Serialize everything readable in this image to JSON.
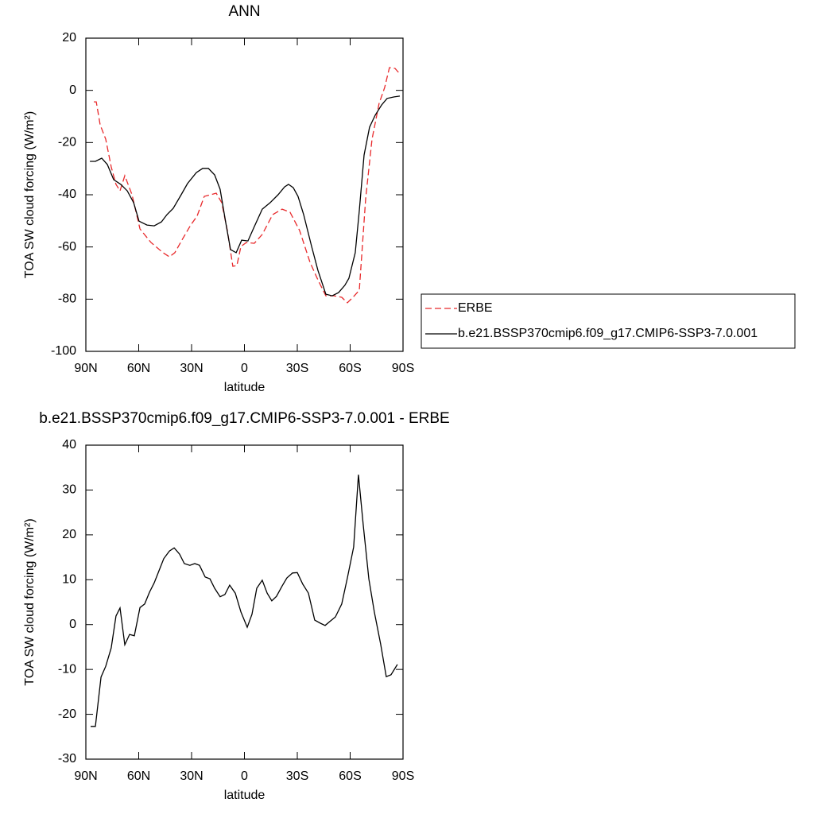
{
  "chart_data": [
    {
      "type": "line",
      "title": "ANN",
      "xlabel": "latitude",
      "ylabel": "TOA SW cloud forcing (W/m²)",
      "xlim": [
        90,
        -90
      ],
      "ylim": [
        20,
        -100
      ],
      "xticks": [
        {
          "value": 90,
          "label": "90N"
        },
        {
          "value": 60,
          "label": "60N"
        },
        {
          "value": 30,
          "label": "30N"
        },
        0,
        {
          "value": -30,
          "label": "30S"
        },
        {
          "value": -60,
          "label": "60S"
        },
        {
          "value": -90,
          "label": "90S"
        }
      ],
      "yticks": [
        20,
        0,
        -20,
        -40,
        -60,
        -80,
        -100
      ],
      "legend": "right",
      "series": [
        {
          "name": "ERBE",
          "color": "#e8292b",
          "linestyle": "dashed",
          "x": [
            85.5,
            84.1,
            81.9,
            78.7,
            75.6,
            72.9,
            70.6,
            67.9,
            63.8,
            59.3,
            53,
            46.2,
            42.6,
            39.5,
            35,
            30.5,
            26.9,
            22.8,
            19.2,
            16,
            12.9,
            9.7,
            6.6,
            4.3,
            2,
            -1.1,
            -5.6,
            -10.1,
            -16,
            -21.4,
            -25.9,
            -31.3,
            -37.2,
            -41.7,
            -46.2,
            -50.7,
            -55.2,
            -58.4,
            -61.6,
            -65.2,
            -68.8,
            -72.4,
            -76.4,
            -79.6,
            -82.3,
            -85.5,
            -88.2
          ],
          "values": [
            -4.4,
            -4.4,
            -13.2,
            -18.7,
            -29.3,
            -36,
            -38.5,
            -32.7,
            -40,
            -53.1,
            -58.3,
            -62.2,
            -63.8,
            -62.2,
            -56.8,
            -51.6,
            -48.2,
            -40.6,
            -40,
            -39.4,
            -43,
            -53.7,
            -67.4,
            -67.1,
            -59.8,
            -58.3,
            -58.6,
            -55.2,
            -47.6,
            -45.5,
            -46.7,
            -53.7,
            -65.9,
            -72.6,
            -78.7,
            -78.7,
            -79.3,
            -81.4,
            -79.3,
            -76.6,
            -41.5,
            -18.7,
            -5,
            1.1,
            8.7,
            8.4,
            6.3
          ]
        },
        {
          "name": "b.e21.BSSP370cmip6.f09_g17.CMIP6-SSP3-7.0.001",
          "color": "#000000",
          "linestyle": "solid",
          "x": [
            87.7,
            84.6,
            81,
            77.8,
            74.2,
            70.2,
            66.5,
            62.9,
            59.8,
            55.3,
            51.2,
            47.1,
            44,
            40.4,
            35.9,
            32.3,
            27.3,
            23.7,
            20.5,
            16.9,
            13.8,
            10.6,
            7.9,
            4.7,
            1.6,
            -2,
            -5.6,
            -10.1,
            -14.6,
            -19.1,
            -22.8,
            -25,
            -27.7,
            -30.4,
            -33.6,
            -38.1,
            -41.7,
            -46.2,
            -49.8,
            -53.4,
            -57,
            -59.3,
            -62.9,
            -65.2,
            -67.9,
            -71,
            -74.2,
            -77.8,
            -81,
            -85,
            -88.2
          ],
          "values": [
            -27.2,
            -27.2,
            -26,
            -28.4,
            -34.2,
            -36,
            -38.5,
            -43,
            -50.1,
            -51.6,
            -51.9,
            -50.4,
            -47.6,
            -45.2,
            -40,
            -35.7,
            -31.5,
            -29.9,
            -29.9,
            -32.4,
            -37.9,
            -50.7,
            -61,
            -62.2,
            -57.4,
            -57.7,
            -52.2,
            -45.5,
            -43,
            -40,
            -37,
            -36,
            -37.3,
            -40.6,
            -47.6,
            -59.8,
            -68.9,
            -78.1,
            -78.7,
            -77.5,
            -74.7,
            -72,
            -62.2,
            -46.1,
            -24.8,
            -14.1,
            -9.5,
            -5.6,
            -3.1,
            -2.5,
            -2.2
          ]
        }
      ]
    },
    {
      "type": "line",
      "title": "b.e21.BSSP370cmip6.f09_g17.CMIP6-SSP3-7.0.001 - ERBE",
      "xlabel": "latitude",
      "ylabel": "TOA SW cloud forcing (W/m²)",
      "xlim": [
        90,
        -90
      ],
      "ylim": [
        40,
        -30
      ],
      "xticks": [
        {
          "value": 90,
          "label": "90N"
        },
        {
          "value": 60,
          "label": "60N"
        },
        {
          "value": 30,
          "label": "30N"
        },
        0,
        {
          "value": -30,
          "label": "30S"
        },
        {
          "value": -60,
          "label": "60S"
        },
        {
          "value": -90,
          "label": "90S"
        }
      ],
      "yticks": [
        40,
        30,
        20,
        10,
        0,
        -10,
        -20,
        -30
      ],
      "series": [
        {
          "color": "#000000",
          "linestyle": "solid",
          "x": [
            87.3,
            84.6,
            81.4,
            78.7,
            75.6,
            72.9,
            70.6,
            67.9,
            65.2,
            62.5,
            59.3,
            56.6,
            53.9,
            51.2,
            48.5,
            45.8,
            42.6,
            39.9,
            36.8,
            34.1,
            31,
            28.2,
            25.5,
            22.3,
            19.6,
            16.9,
            13.8,
            11.1,
            8.4,
            5.2,
            2,
            -1.6,
            -4.3,
            -7,
            -10.1,
            -12.9,
            -15.5,
            -18.2,
            -21.4,
            -24.1,
            -27.3,
            -30,
            -33.1,
            -36.3,
            -39.9,
            -43.1,
            -45.8,
            -48.5,
            -51.6,
            -55.2,
            -58.4,
            -62,
            -64.7,
            -67.4,
            -70.6,
            -73.7,
            -77.3,
            -80.5,
            -83.2,
            -86.8
          ],
          "values": [
            -22.7,
            -22.7,
            -11.7,
            -9.3,
            -5.2,
            1.9,
            3.7,
            -4.5,
            -2.2,
            -2.5,
            3.8,
            4.6,
            7.2,
            9.3,
            12,
            14.7,
            16.4,
            17.1,
            15.7,
            13.6,
            13.2,
            13.6,
            13.2,
            10.6,
            10.2,
            8.1,
            6.2,
            6.7,
            8.8,
            7,
            2.8,
            -0.6,
            2.3,
            8.1,
            9.9,
            7,
            5.3,
            6.3,
            8.6,
            10.4,
            11.5,
            11.6,
            9,
            7,
            1,
            0.3,
            -0.2,
            0.7,
            1.7,
            4.6,
            10.4,
            17.3,
            33.4,
            22.3,
            10.2,
            2.8,
            -4.3,
            -11.6,
            -11.2,
            -8.9
          ]
        }
      ]
    }
  ]
}
